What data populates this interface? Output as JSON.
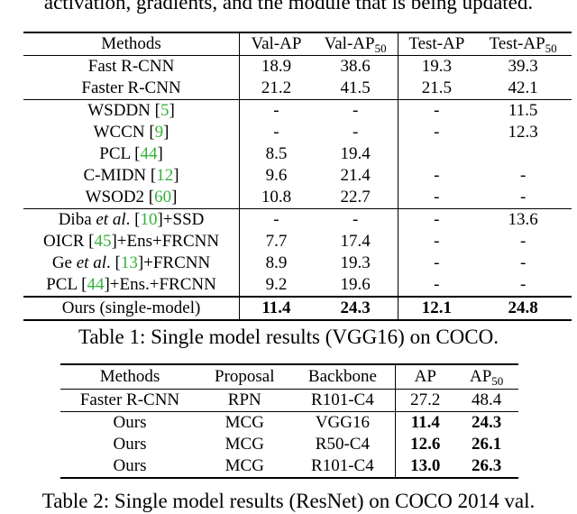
{
  "top_text": "activation, gradients, and the module that is being updated.",
  "table1": {
    "caption": "Table 1: Single model results (VGG16) on COCO.",
    "headers": {
      "methods": "Methods",
      "val_ap": "Val-AP",
      "val_ap50_base": "Val-AP",
      "val_ap50_sub": "50",
      "test_ap": "Test-AP",
      "test_ap50_base": "Test-AP",
      "test_ap50_sub": "50"
    },
    "rows": [
      {
        "method": "Fast R-CNN",
        "val_ap": "18.9",
        "val_ap50": "38.6",
        "test_ap": "19.3",
        "test_ap50": "39.3"
      },
      {
        "method": "Faster R-CNN",
        "val_ap": "21.2",
        "val_ap50": "41.5",
        "test_ap": "21.5",
        "test_ap50": "42.1"
      },
      {
        "method_pre": "WSDDN [",
        "cite": "5",
        "method_post": "]",
        "val_ap": "-",
        "val_ap50": "-",
        "test_ap": "-",
        "test_ap50": "11.5"
      },
      {
        "method_pre": "WCCN [",
        "cite": "9",
        "method_post": "]",
        "val_ap": "-",
        "val_ap50": "-",
        "test_ap": "-",
        "test_ap50": "12.3"
      },
      {
        "method_pre": "PCL [",
        "cite": "44",
        "method_post": "]",
        "val_ap": "8.5",
        "val_ap50": "19.4",
        "test_ap": "",
        "test_ap50": ""
      },
      {
        "method_pre": "C-MIDN [",
        "cite": "12",
        "method_post": "]",
        "val_ap": "9.6",
        "val_ap50": "21.4",
        "test_ap": "-",
        "test_ap50": "-"
      },
      {
        "method_pre": "WSOD2 [",
        "cite": "60",
        "method_post": "]",
        "val_ap": "10.8",
        "val_ap50": "22.7",
        "test_ap": "-",
        "test_ap50": "-"
      },
      {
        "method_pre": "Diba ",
        "method_em": "et al",
        "method_mid": ". [",
        "cite": "10",
        "method_post": "]+SSD",
        "val_ap": "-",
        "val_ap50": "-",
        "test_ap": "-",
        "test_ap50": "13.6"
      },
      {
        "method_pre": "OICR [",
        "cite": "45",
        "method_post": "]+Ens+FRCNN",
        "val_ap": "7.7",
        "val_ap50": "17.4",
        "test_ap": "-",
        "test_ap50": "-"
      },
      {
        "method_pre": "Ge ",
        "method_em": "et al",
        "method_mid": ". [",
        "cite": "13",
        "method_post": "]+FRCNN",
        "val_ap": "8.9",
        "val_ap50": "19.3",
        "test_ap": "-",
        "test_ap50": "-"
      },
      {
        "method_pre": "PCL [",
        "cite": "44",
        "method_post": "]+Ens.+FRCNN",
        "val_ap": "9.2",
        "val_ap50": "19.6",
        "test_ap": "-",
        "test_ap50": "-"
      },
      {
        "method": "Ours (single-model)",
        "val_ap": "11.4",
        "val_ap50": "24.3",
        "test_ap": "12.1",
        "test_ap50": "24.8"
      }
    ]
  },
  "table2": {
    "caption": "Table 2: Single model results (ResNet) on COCO 2014 val.",
    "headers": {
      "methods": "Methods",
      "proposal": "Proposal",
      "backbone": "Backbone",
      "ap": "AP",
      "ap50_base": "AP",
      "ap50_sub": "50"
    },
    "rows": [
      {
        "method": "Faster R-CNN",
        "proposal": "RPN",
        "backbone": "R101-C4",
        "ap": "27.2",
        "ap50": "48.4"
      },
      {
        "method": "Ours",
        "proposal": "MCG",
        "backbone": "VGG16",
        "ap": "11.4",
        "ap50": "24.3"
      },
      {
        "method": "Ours",
        "proposal": "MCG",
        "backbone": "R50-C4",
        "ap": "12.6",
        "ap50": "26.1"
      },
      {
        "method": "Ours",
        "proposal": "MCG",
        "backbone": "R101-C4",
        "ap": "13.0",
        "ap50": "26.3"
      }
    ]
  },
  "colors": {
    "citation": "#35b13b",
    "text": "#000000",
    "background": "#ffffff"
  }
}
